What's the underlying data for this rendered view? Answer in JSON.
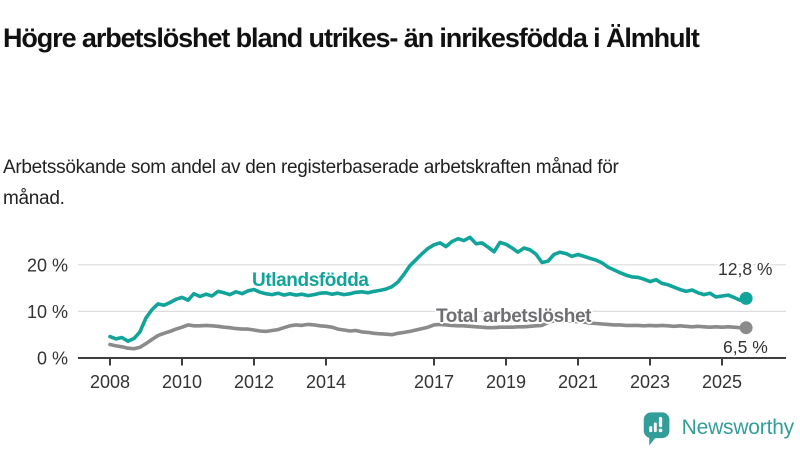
{
  "header": {
    "title": "Högre arbetslöshet bland utrikes- än inrikesfödda i Älmhult",
    "subtitle": "Arbetssökande som andel av den registerbaserade arbetskraften månad för månad."
  },
  "colors": {
    "accent_teal": "#12a49b",
    "series_gray": "#8b8b8b",
    "gray_label": "#6e6e73",
    "logo_teal": "#339e99",
    "axis_line": "#3f3f3f",
    "gridline": "#dcdcdc",
    "axis_text": "#333333"
  },
  "chart_data": {
    "type": "line",
    "title": "Högre arbetslöshet bland utrikes- än inrikesfödda i Älmhult",
    "subtitle": "Arbetssökande som andel av den registerbaserade arbetskraften månad för månad.",
    "xlabel": "",
    "ylabel": "",
    "ylim": [
      0,
      27
    ],
    "xlim": [
      2007.2,
      2026.3
    ],
    "grid": "horizontal-only",
    "legend_position": "inline-labels-on-lines",
    "y_ticks": [
      {
        "value": 0,
        "label": "0 %"
      },
      {
        "value": 10,
        "label": "10 %"
      },
      {
        "value": 20,
        "label": "20 %"
      }
    ],
    "x_ticks": [
      {
        "year": 2008,
        "label": "2008"
      },
      {
        "year": 2010,
        "label": "2010"
      },
      {
        "year": 2012,
        "label": "2012"
      },
      {
        "year": 2014,
        "label": "2014"
      },
      {
        "year": 2017,
        "label": "2017"
      },
      {
        "year": 2019,
        "label": "2019"
      },
      {
        "year": 2021,
        "label": "2021"
      },
      {
        "year": 2023,
        "label": "2023"
      },
      {
        "year": 2025,
        "label": "2025"
      }
    ],
    "series": [
      {
        "name": "Utlandsfödda",
        "color": "#12a49b",
        "label_color": "#12a49b",
        "end_label": "12,8 %",
        "end_value": 12.8,
        "points": [
          [
            2008.0,
            4.6
          ],
          [
            2008.17,
            4.1
          ],
          [
            2008.33,
            4.4
          ],
          [
            2008.5,
            3.6
          ],
          [
            2008.67,
            4.2
          ],
          [
            2008.83,
            5.6
          ],
          [
            2009.0,
            8.6
          ],
          [
            2009.17,
            10.4
          ],
          [
            2009.33,
            11.6
          ],
          [
            2009.5,
            11.3
          ],
          [
            2009.67,
            11.9
          ],
          [
            2009.83,
            12.6
          ],
          [
            2010.0,
            13.0
          ],
          [
            2010.17,
            12.4
          ],
          [
            2010.33,
            13.8
          ],
          [
            2010.5,
            13.2
          ],
          [
            2010.67,
            13.7
          ],
          [
            2010.83,
            13.3
          ],
          [
            2011.0,
            14.3
          ],
          [
            2011.17,
            14.0
          ],
          [
            2011.33,
            13.6
          ],
          [
            2011.5,
            14.2
          ],
          [
            2011.67,
            13.8
          ],
          [
            2011.83,
            14.4
          ],
          [
            2012.0,
            14.7
          ],
          [
            2012.17,
            14.1
          ],
          [
            2012.33,
            13.8
          ],
          [
            2012.5,
            13.6
          ],
          [
            2012.67,
            13.9
          ],
          [
            2012.83,
            13.5
          ],
          [
            2013.0,
            13.8
          ],
          [
            2013.17,
            13.5
          ],
          [
            2013.33,
            13.7
          ],
          [
            2013.5,
            13.4
          ],
          [
            2013.67,
            13.6
          ],
          [
            2013.83,
            13.9
          ],
          [
            2014.0,
            14.0
          ],
          [
            2014.17,
            13.7
          ],
          [
            2014.33,
            13.9
          ],
          [
            2014.5,
            13.6
          ],
          [
            2014.67,
            13.8
          ],
          [
            2014.83,
            14.1
          ],
          [
            2015.0,
            14.2
          ],
          [
            2015.17,
            14.0
          ],
          [
            2015.33,
            14.3
          ],
          [
            2015.5,
            14.5
          ],
          [
            2015.67,
            14.8
          ],
          [
            2015.83,
            15.3
          ],
          [
            2016.0,
            16.3
          ],
          [
            2016.17,
            18.0
          ],
          [
            2016.33,
            19.8
          ],
          [
            2016.5,
            21.1
          ],
          [
            2016.67,
            22.4
          ],
          [
            2016.83,
            23.5
          ],
          [
            2017.0,
            24.3
          ],
          [
            2017.17,
            24.7
          ],
          [
            2017.33,
            23.9
          ],
          [
            2017.5,
            25.0
          ],
          [
            2017.67,
            25.6
          ],
          [
            2017.83,
            25.2
          ],
          [
            2018.0,
            25.9
          ],
          [
            2018.17,
            24.5
          ],
          [
            2018.33,
            24.7
          ],
          [
            2018.5,
            23.8
          ],
          [
            2018.67,
            22.8
          ],
          [
            2018.83,
            24.8
          ],
          [
            2019.0,
            24.4
          ],
          [
            2019.17,
            23.6
          ],
          [
            2019.33,
            22.7
          ],
          [
            2019.5,
            23.6
          ],
          [
            2019.67,
            23.2
          ],
          [
            2019.83,
            22.3
          ],
          [
            2020.0,
            20.5
          ],
          [
            2020.17,
            20.8
          ],
          [
            2020.33,
            22.2
          ],
          [
            2020.5,
            22.7
          ],
          [
            2020.67,
            22.4
          ],
          [
            2020.83,
            21.8
          ],
          [
            2021.0,
            22.2
          ],
          [
            2021.17,
            21.8
          ],
          [
            2021.33,
            21.4
          ],
          [
            2021.5,
            21.0
          ],
          [
            2021.67,
            20.4
          ],
          [
            2021.83,
            19.5
          ],
          [
            2022.0,
            18.9
          ],
          [
            2022.17,
            18.3
          ],
          [
            2022.33,
            17.8
          ],
          [
            2022.5,
            17.4
          ],
          [
            2022.67,
            17.3
          ],
          [
            2022.83,
            16.9
          ],
          [
            2023.0,
            16.4
          ],
          [
            2023.17,
            16.8
          ],
          [
            2023.33,
            16.0
          ],
          [
            2023.5,
            15.7
          ],
          [
            2023.67,
            15.2
          ],
          [
            2023.83,
            14.7
          ],
          [
            2024.0,
            14.3
          ],
          [
            2024.17,
            14.6
          ],
          [
            2024.33,
            14.0
          ],
          [
            2024.5,
            13.6
          ],
          [
            2024.67,
            13.9
          ],
          [
            2024.83,
            13.1
          ],
          [
            2025.0,
            13.3
          ],
          [
            2025.17,
            13.5
          ],
          [
            2025.33,
            13.0
          ],
          [
            2025.5,
            12.4
          ],
          [
            2025.67,
            12.8
          ]
        ]
      },
      {
        "name": "Total arbetslöshet",
        "color": "#8b8b8b",
        "label_color": "#6e6e73",
        "end_label": "6,5 %",
        "end_value": 6.5,
        "points": [
          [
            2008.0,
            2.9
          ],
          [
            2008.17,
            2.6
          ],
          [
            2008.33,
            2.4
          ],
          [
            2008.5,
            2.1
          ],
          [
            2008.67,
            2.0
          ],
          [
            2008.83,
            2.3
          ],
          [
            2009.0,
            3.1
          ],
          [
            2009.17,
            4.0
          ],
          [
            2009.33,
            4.8
          ],
          [
            2009.5,
            5.3
          ],
          [
            2009.67,
            5.7
          ],
          [
            2009.83,
            6.2
          ],
          [
            2010.0,
            6.6
          ],
          [
            2010.17,
            7.1
          ],
          [
            2010.33,
            6.9
          ],
          [
            2010.5,
            6.9
          ],
          [
            2010.67,
            7.0
          ],
          [
            2010.83,
            6.9
          ],
          [
            2011.0,
            6.8
          ],
          [
            2011.17,
            6.6
          ],
          [
            2011.33,
            6.5
          ],
          [
            2011.5,
            6.3
          ],
          [
            2011.67,
            6.2
          ],
          [
            2011.83,
            6.2
          ],
          [
            2012.0,
            6.0
          ],
          [
            2012.17,
            5.8
          ],
          [
            2012.33,
            5.7
          ],
          [
            2012.5,
            5.9
          ],
          [
            2012.67,
            6.1
          ],
          [
            2012.83,
            6.5
          ],
          [
            2013.0,
            6.9
          ],
          [
            2013.17,
            7.1
          ],
          [
            2013.33,
            7.0
          ],
          [
            2013.5,
            7.2
          ],
          [
            2013.67,
            7.1
          ],
          [
            2013.83,
            6.9
          ],
          [
            2014.0,
            6.8
          ],
          [
            2014.17,
            6.6
          ],
          [
            2014.33,
            6.2
          ],
          [
            2014.5,
            6.0
          ],
          [
            2014.67,
            5.8
          ],
          [
            2014.83,
            5.9
          ],
          [
            2015.0,
            5.6
          ],
          [
            2015.17,
            5.5
          ],
          [
            2015.33,
            5.3
          ],
          [
            2015.5,
            5.2
          ],
          [
            2015.67,
            5.1
          ],
          [
            2015.83,
            5.0
          ],
          [
            2016.0,
            5.3
          ],
          [
            2016.17,
            5.5
          ],
          [
            2016.33,
            5.7
          ],
          [
            2016.5,
            6.0
          ],
          [
            2016.67,
            6.3
          ],
          [
            2016.83,
            6.6
          ],
          [
            2017.0,
            7.1
          ],
          [
            2017.17,
            7.2
          ],
          [
            2017.33,
            7.1
          ],
          [
            2017.5,
            7.0
          ],
          [
            2017.67,
            6.9
          ],
          [
            2017.83,
            6.9
          ],
          [
            2018.0,
            6.8
          ],
          [
            2018.17,
            6.7
          ],
          [
            2018.33,
            6.6
          ],
          [
            2018.5,
            6.5
          ],
          [
            2018.67,
            6.5
          ],
          [
            2018.83,
            6.6
          ],
          [
            2019.0,
            6.6
          ],
          [
            2019.17,
            6.6
          ],
          [
            2019.33,
            6.7
          ],
          [
            2019.5,
            6.7
          ],
          [
            2019.67,
            6.8
          ],
          [
            2019.83,
            6.9
          ],
          [
            2020.0,
            7.0
          ],
          [
            2020.17,
            7.6
          ],
          [
            2020.33,
            8.0
          ],
          [
            2020.5,
            8.1
          ],
          [
            2020.67,
            8.0
          ],
          [
            2020.83,
            7.9
          ],
          [
            2021.0,
            7.8
          ],
          [
            2021.17,
            7.7
          ],
          [
            2021.33,
            7.5
          ],
          [
            2021.5,
            7.4
          ],
          [
            2021.67,
            7.3
          ],
          [
            2021.83,
            7.2
          ],
          [
            2022.0,
            7.1
          ],
          [
            2022.17,
            7.1
          ],
          [
            2022.33,
            7.0
          ],
          [
            2022.5,
            7.0
          ],
          [
            2022.67,
            7.0
          ],
          [
            2022.83,
            6.9
          ],
          [
            2023.0,
            7.0
          ],
          [
            2023.17,
            6.9
          ],
          [
            2023.33,
            7.0
          ],
          [
            2023.5,
            6.9
          ],
          [
            2023.67,
            6.8
          ],
          [
            2023.83,
            6.9
          ],
          [
            2024.0,
            6.8
          ],
          [
            2024.17,
            6.7
          ],
          [
            2024.33,
            6.8
          ],
          [
            2024.5,
            6.7
          ],
          [
            2024.67,
            6.6
          ],
          [
            2024.83,
            6.7
          ],
          [
            2025.0,
            6.6
          ],
          [
            2025.17,
            6.7
          ],
          [
            2025.33,
            6.6
          ],
          [
            2025.5,
            6.5
          ],
          [
            2025.67,
            6.5
          ]
        ]
      }
    ]
  },
  "logo": {
    "brand": "Newsworthy",
    "icon": "bar-chart-speech-bubble"
  }
}
